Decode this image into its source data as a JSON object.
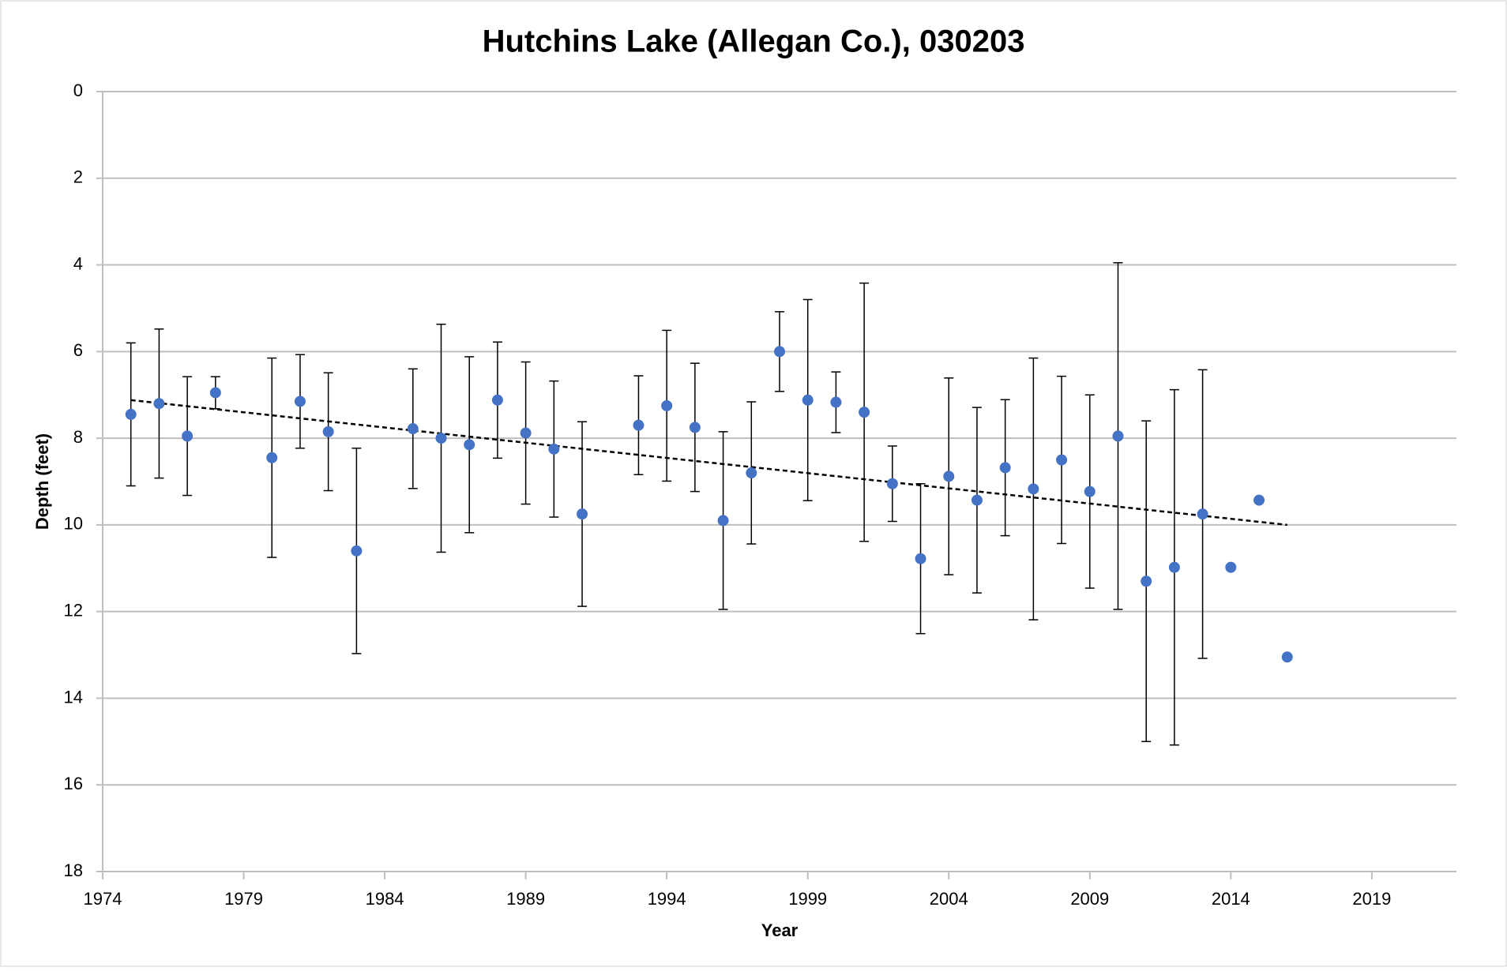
{
  "chart_data": {
    "type": "scatter",
    "title": "Hutchins Lake (Allegan Co.), 030203",
    "x_label": "Year",
    "y_label": "Depth (feet)",
    "xlim": [
      1974,
      2022
    ],
    "xticks": [
      1974,
      1979,
      1984,
      1989,
      1994,
      1999,
      2004,
      2009,
      2014,
      2019
    ],
    "ylim": [
      0,
      18
    ],
    "yticks": [
      0,
      2,
      4,
      6,
      8,
      10,
      12,
      14,
      16,
      18
    ],
    "y_inverted": true,
    "grid": true,
    "series": [
      {
        "name": "Depth",
        "color": "#4472c4",
        "x": [
          1975,
          1976,
          1977,
          1978,
          1980,
          1981,
          1982,
          1983,
          1985,
          1986,
          1987,
          1988,
          1989,
          1990,
          1991,
          1993,
          1994,
          1995,
          1996,
          1997,
          1998,
          1999,
          2000,
          2001,
          2002,
          2003,
          2004,
          2005,
          2006,
          2007,
          2008,
          2009,
          2010,
          2011,
          2012,
          2013,
          2014,
          2015,
          2016
        ],
        "values": [
          7.45,
          7.2,
          7.95,
          6.95,
          8.45,
          7.15,
          7.85,
          10.6,
          7.78,
          8.0,
          8.15,
          7.12,
          7.88,
          8.25,
          9.75,
          7.7,
          7.25,
          7.75,
          9.9,
          8.8,
          6.0,
          7.12,
          7.17,
          7.4,
          9.05,
          10.78,
          8.88,
          9.43,
          8.68,
          9.17,
          8.5,
          9.23,
          7.95,
          11.3,
          10.98,
          9.75,
          10.98,
          9.43,
          13.05
        ],
        "errors": [
          1.65,
          1.72,
          1.37,
          0.37,
          2.3,
          1.08,
          1.36,
          2.37,
          1.38,
          2.63,
          2.03,
          1.34,
          1.64,
          1.57,
          2.13,
          1.14,
          1.74,
          1.48,
          2.05,
          1.64,
          0.92,
          2.32,
          0.7,
          2.98,
          0.87,
          1.73,
          2.27,
          2.14,
          1.57,
          3.02,
          1.93,
          2.23,
          4.0,
          3.7,
          4.1,
          3.33,
          null,
          null,
          null
        ]
      }
    ],
    "trendline": {
      "color": "#000000",
      "x": [
        1975,
        2016
      ],
      "values": [
        7.12,
        10.0
      ]
    }
  }
}
